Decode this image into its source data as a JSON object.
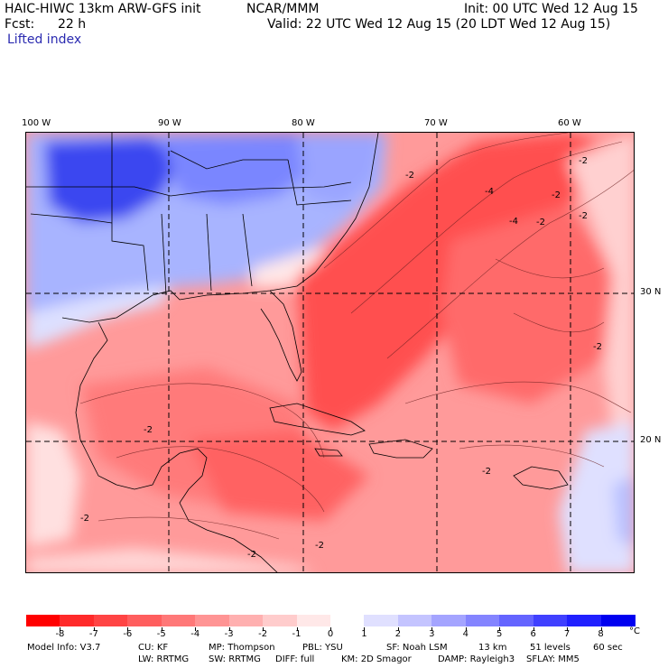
{
  "header": {
    "model_title": "HAIC-HIWC 13km ARW-GFS init",
    "organization": "NCAR/MMM",
    "init_text": "Init: 00 UTC Wed 12 Aug 15",
    "forecast_label": "Fcst:",
    "forecast_hours": "22 h",
    "valid_text": "Valid: 22 UTC Wed 12 Aug 15 (20 LDT Wed 12 Aug 15)",
    "field_name": "Lifted index"
  },
  "map": {
    "longitude_labels": [
      "100 W",
      "90 W",
      "80 W",
      "70 W",
      "60 W"
    ],
    "latitude_labels": [
      "30 N",
      "20 N"
    ],
    "contour_labels": [
      "-2",
      "-4",
      "-2",
      "-2",
      "-2",
      "-2",
      "-2",
      "-4",
      "-2",
      "-2",
      "-2",
      "-2",
      "-2"
    ]
  },
  "colorbar": {
    "ticks": [
      "-8",
      "-7",
      "-6",
      "-5",
      "-4",
      "-3",
      "-2",
      "-1",
      "0",
      "1",
      "2",
      "3",
      "4",
      "5",
      "6",
      "7",
      "8"
    ],
    "unit": "°C",
    "colors": [
      "#ff0000",
      "#ff2a2a",
      "#ff4444",
      "#ff5e5e",
      "#ff7878",
      "#ff9494",
      "#ffb0b0",
      "#ffcccc",
      "#ffe8e8",
      "#ffffff",
      "#e0e0ff",
      "#c4c4ff",
      "#a4a4ff",
      "#8484ff",
      "#6464ff",
      "#4040ff",
      "#2020ff",
      "#0000f0"
    ]
  },
  "footer": {
    "line1": [
      "Model Info: V3.7",
      "CU: KF",
      "MP: Thompson",
      "PBL: YSU",
      "SF: Noah LSM",
      "13 km",
      "51 levels",
      "60 sec"
    ],
    "line2": [
      "LW: RRTMG",
      "SW: RRTMG",
      "DIFF: full",
      "KM: 2D Smagor",
      "DAMP: Rayleigh3",
      "SFLAY: MM5"
    ]
  }
}
